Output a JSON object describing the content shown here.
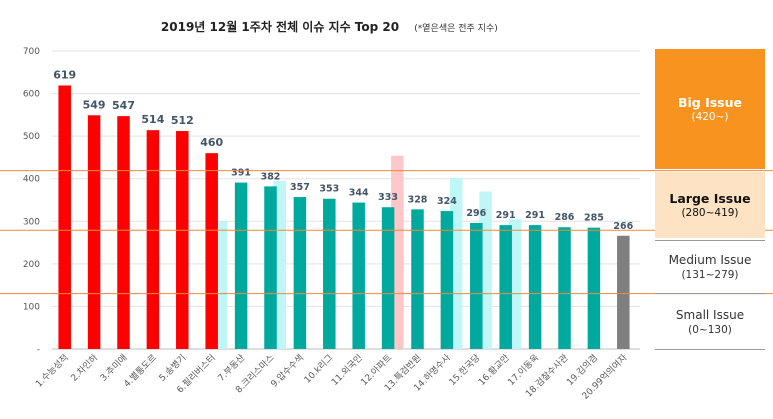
{
  "chart_data": {
    "type": "bar",
    "title": "2019년 12월 1주차 전체 이슈 지수 Top 20",
    "title_note": "(*옅은색은 전주 지수)",
    "xlabel": "",
    "ylabel": "",
    "ylim": [
      0,
      700
    ],
    "yticks": [
      "-",
      "100",
      "200",
      "300",
      "400",
      "500",
      "600",
      "700"
    ],
    "grid": true,
    "categories": [
      "1.수능성적",
      "2.차인하",
      "3.추미애",
      "4.별통도르",
      "5.송병기",
      "6.필리버스터",
      "7.부동산",
      "8.크리스마스",
      "9.압수수색",
      "10.k리그",
      "11.외국인",
      "12.아파트",
      "13.특검반원",
      "14.하명수사",
      "15.한국당",
      "16.황교안",
      "17.이동욱",
      "18.검찰수사관",
      "19.김의겸",
      "20.99억의여자"
    ],
    "series": [
      {
        "values": [
          619,
          549,
          547,
          514,
          512,
          460,
          391,
          382,
          357,
          353,
          344,
          333,
          328,
          324,
          296,
          291,
          291,
          286,
          285,
          266
        ],
        "data_labels": [
          "619",
          "549",
          "547",
          "514",
          "512",
          "460",
          "391",
          "382",
          "357",
          "353",
          "344",
          "333",
          "328",
          "324",
          "296",
          "291",
          "291",
          "286",
          "285",
          "266"
        ]
      },
      {
        "values": [
          null,
          null,
          null,
          null,
          null,
          300,
          null,
          395,
          null,
          null,
          null,
          454,
          null,
          402,
          370,
          305,
          null,
          null,
          null,
          null
        ]
      }
    ],
    "thresholds": [
      130,
      279,
      419
    ],
    "colors": {
      "big": "#ff0000",
      "large": "#00a99d",
      "medium": "#7f7f7f",
      "prev_big": "#ffc7c7",
      "prev_large": "#bff6f6",
      "threshold_line": "#f08a3c"
    }
  },
  "zones": [
    {
      "name": "Big Issue",
      "range": "(420~)"
    },
    {
      "name": "Large Issue",
      "range": "(280~419)"
    },
    {
      "name": "Medium Issue",
      "range": "(131~279)"
    },
    {
      "name": "Small Issue",
      "range": "(0~130)"
    }
  ]
}
